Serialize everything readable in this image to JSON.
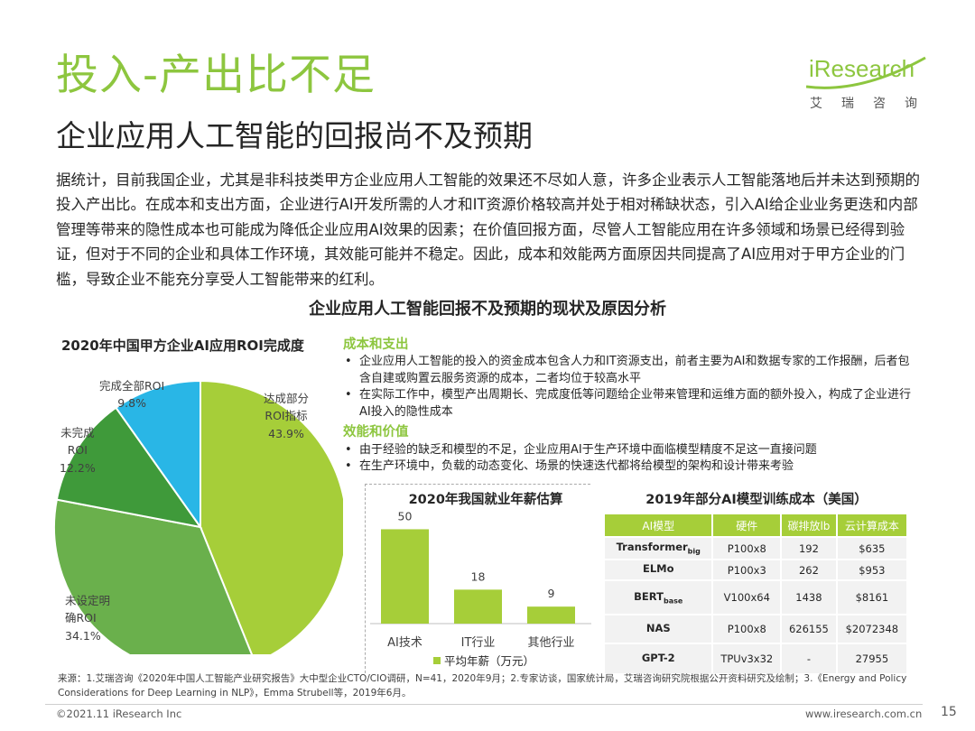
{
  "title": "投入-产出比不足",
  "subtitle": "企业应用人工智能的回报尚不及预期",
  "logo": {
    "word": "iResearch",
    "sub": "艾瑞咨询"
  },
  "paragraph": "据统计，目前我国企业，尤其是非科技类甲方企业应用人工智能的效果还不尽如人意，许多企业表示人工智能落地后并未达到预期的投入产出比。在成本和支出方面，企业进行AI开发所需的人才和IT资源价格较高并处于相对稀缺状态，引入AI给企业业务更迭和内部管理等带来的隐性成本也可能成为降低企业应用AI效果的因素；在价值回报方面，尽管人工智能应用在许多领域和场景已经得到验证，但对于不同的企业和具体工作环境，其效能可能并不稳定。因此，成本和效能两方面原因共同提高了AI应用对于甲方企业的门槛，导致企业不能充分享受人工智能带来的红利。",
  "section_title": "企业应用人工智能回报不及预期的现状及原因分析",
  "right_block": {
    "cost_heading": "成本和支出",
    "cost_items": [
      "企业应用人工智能的投入的资金成本包含人力和IT资源支出，前者主要为AI和数据专家的工作报酬，后者包含自建或购置云服务资源的成本，二者均位于较高水平",
      "在实际工作中，模型产出周期长、完成度低等问题给企业带来管理和运维方面的额外投入，构成了企业进行AI投入的隐性成本"
    ],
    "value_heading": "效能和价值",
    "value_items": [
      "由于经验的缺乏和模型的不足，企业应用AI于生产环境中面临模型精度不足这一直接问题",
      "在生产环境中，负载的动态变化、场景的快速迭代都将给模型的架构和设计带来考验"
    ]
  },
  "table": {
    "title": "2019年部分AI模型训练成本（美国）",
    "headers": [
      "AI模型",
      "硬件",
      "碳排放lb",
      "云计算成本"
    ],
    "rows": [
      {
        "model": "Transformer",
        "model_sub": "big",
        "hardware": "P100x8",
        "carbon": "192",
        "cost": "$635"
      },
      {
        "model": "ELMo",
        "model_sub": "",
        "hardware": "P100x3",
        "carbon": "262",
        "cost": "$953"
      },
      {
        "model": "BERT",
        "model_sub": "base",
        "hardware": "V100x64",
        "carbon": "1438",
        "cost": "$8161"
      },
      {
        "model": "NAS",
        "model_sub": "",
        "hardware": "P100x8",
        "carbon": "626155",
        "cost": "$2072348"
      },
      {
        "model": "GPT-2",
        "model_sub": "",
        "hardware": "TPUv3x32",
        "carbon": "-",
        "cost": "27955"
      }
    ]
  },
  "source": "来源：1.艾瑞咨询《2020年中国人工智能产业研究报告》大中型企业CTO/CIO调研，N=41，2020年9月；2.专家访谈，国家统计局，艾瑞咨询研究院根据公开资料研究及绘制；3.《Energy and Policy Considerations for Deep Learning in NLP》，Emma Strubell等，2019年6月。",
  "footer": {
    "copyright": "©2021.11 iResearch Inc",
    "website": "www.iresearch.com.cn",
    "page": "15"
  },
  "chart_data": [
    {
      "type": "pie",
      "title": "2020年中国甲方企业AI应用ROI完成度",
      "slices": [
        {
          "label_lines": [
            "达成部分",
            "ROI指标"
          ],
          "value": 43.9,
          "display": "43.9%",
          "color": "#a6ce39"
        },
        {
          "label_lines": [
            "未设定明",
            "确ROI"
          ],
          "value": 34.1,
          "display": "34.1%",
          "color": "#6ab04c"
        },
        {
          "label_lines": [
            "未完成",
            "ROI"
          ],
          "value": 12.2,
          "display": "12.2%",
          "color": "#3f9a3a"
        },
        {
          "label_lines": [
            "完成全部ROI"
          ],
          "value": 9.8,
          "display": "9.8%",
          "color": "#29b6e6"
        }
      ]
    },
    {
      "type": "bar",
      "title": "2020年我国就业年薪估算",
      "categories": [
        "AI技术",
        "IT行业",
        "其他行业"
      ],
      "series": [
        {
          "name": "平均年薪（万元）",
          "values": [
            50,
            18,
            9
          ]
        }
      ],
      "ylim": [
        0,
        55
      ],
      "color": "#a6ce39"
    }
  ]
}
